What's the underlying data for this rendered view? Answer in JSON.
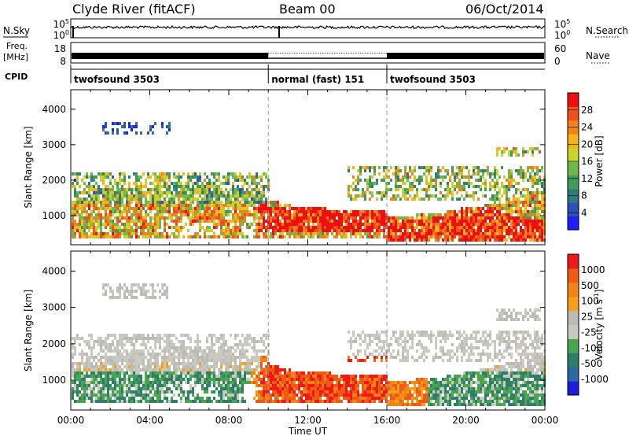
{
  "header": {
    "station": "Clyde River (fitACF)",
    "beam": "Beam 00",
    "date": "06/Oct/2014"
  },
  "colors": {
    "power_scale": [
      "#1e1eff",
      "#2a52b5",
      "#2f7a7a",
      "#3f9b5a",
      "#6fb84a",
      "#c8d42a",
      "#f5b51a",
      "#f2831a",
      "#f2511a",
      "#ee1010"
    ],
    "velocity_scale": [
      "#1e1ee0",
      "#2a6aa0",
      "#2f7e6a",
      "#4aa550",
      "#c9c9c0",
      "#bcbcb4",
      "#f4a019",
      "#f08418",
      "#f05a12",
      "#ee1a1a"
    ]
  },
  "chart_data": [
    {
      "type": "line",
      "name": "noise-panel",
      "left_label": "N.Sky",
      "left_ticks": [
        "10^5",
        "10^0"
      ],
      "right_label": "N.Search",
      "right_ticks": [
        "10^5",
        "10^0"
      ],
      "scale": "log"
    },
    {
      "type": "line",
      "name": "frequency-panel",
      "left_label": "Freq.",
      "left_unit": "[MHz]",
      "left_ticks": [
        18,
        8
      ],
      "right_label": "Nave",
      "right_ticks": [
        60,
        0
      ]
    },
    {
      "type": "table",
      "name": "cpid-strip",
      "label": "CPID",
      "segments": [
        {
          "start": "00:00",
          "end": "10:00",
          "text": "twofsound 3503"
        },
        {
          "start": "10:00",
          "end": "16:00",
          "text": "normal (fast) 151"
        },
        {
          "start": "16:00",
          "end": "24:00",
          "text": "twofsound 3503"
        }
      ]
    },
    {
      "type": "heatmap",
      "name": "power-panel",
      "ylabel": "Slant Range [km]",
      "yticks": [
        1000,
        2000,
        3000,
        4000
      ],
      "ylim": [
        180,
        4550
      ],
      "xlim": [
        "00:00",
        "24:00"
      ],
      "colorbar": {
        "label": "Power [dB]",
        "ticks": [
          4,
          8,
          12,
          16,
          20,
          24,
          28
        ],
        "range": [
          0,
          32
        ]
      }
    },
    {
      "type": "heatmap",
      "name": "velocity-panel",
      "ylabel": "Slant Range [km]",
      "xlabel": "Time UT",
      "yticks": [
        1000,
        2000,
        3000,
        4000
      ],
      "ylim": [
        180,
        4550
      ],
      "xticks": [
        "00:00",
        "04:00",
        "08:00",
        "12:00",
        "16:00",
        "20:00",
        "00:00"
      ],
      "colorbar": {
        "label": "Velocity [m s^-1]",
        "ticks": [
          1000,
          500,
          100,
          25,
          -25,
          -100,
          -500,
          -1000
        ]
      }
    }
  ]
}
